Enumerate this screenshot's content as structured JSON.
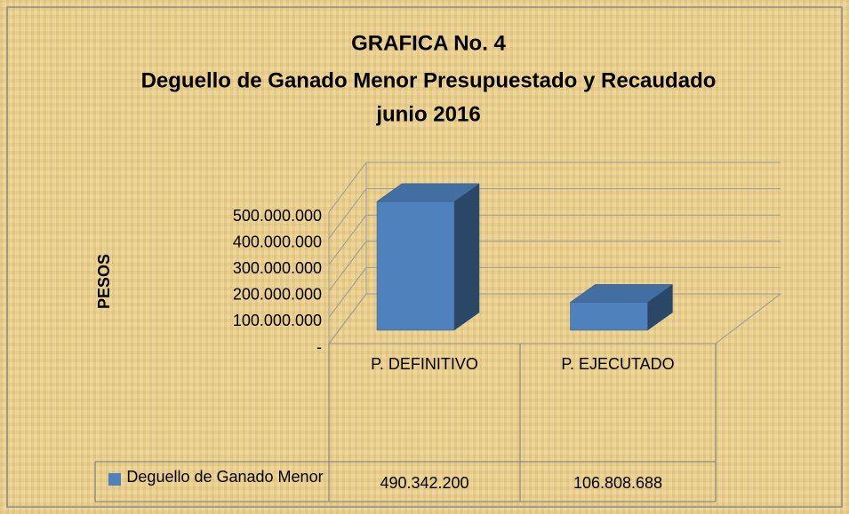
{
  "chart_data": {
    "type": "bar3d",
    "title": [
      "GRAFICA No. 4",
      "Deguello de Ganado Menor Presupuestado y Recaudado",
      "junio 2016"
    ],
    "y_label": "PESOS",
    "categories": [
      "P. DEFINITIVO",
      "P. EJECUTADO"
    ],
    "series": [
      {
        "name": "Deguello de Ganado Menor",
        "color": "#4f81bd",
        "values": [
          490342200,
          106808688
        ],
        "value_labels": [
          "490.342.200",
          "106.808.688"
        ]
      }
    ],
    "ylim": [
      0,
      500000000
    ],
    "yticks": [
      {
        "value": 0,
        "label": "-"
      },
      {
        "value": 100000000,
        "label": "100.000.000"
      },
      {
        "value": 200000000,
        "label": "200.000.000"
      },
      {
        "value": 300000000,
        "label": "300.000.000"
      },
      {
        "value": 400000000,
        "label": "400.000.000"
      },
      {
        "value": 500000000,
        "label": "500.000.000"
      }
    ],
    "grid": true
  }
}
